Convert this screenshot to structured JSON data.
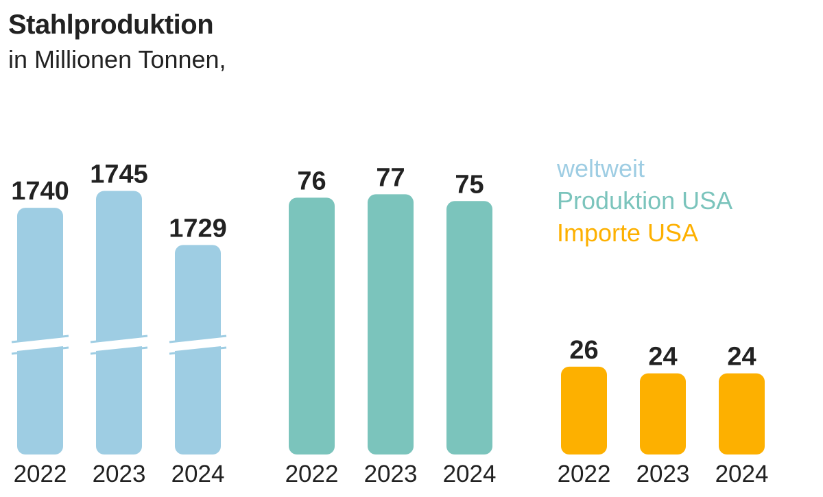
{
  "chart_data": {
    "type": "bar",
    "title": "Stahlproduktion",
    "subtitle": "in Millionen Tonnen,",
    "categories": [
      "2022",
      "2023",
      "2024"
    ],
    "series": [
      {
        "name": "weltweit",
        "values": [
          1740,
          1745,
          1729
        ],
        "color": "#9ecde3",
        "axis_break": true
      },
      {
        "name": "Produktion USA",
        "values": [
          76,
          77,
          75
        ],
        "color": "#7bc4bc"
      },
      {
        "name": "Importe USA",
        "values": [
          26,
          24,
          24
        ],
        "color": "#fdb000"
      }
    ],
    "legend_placement": "top-right",
    "grid": false,
    "axes_visible": false,
    "data_labels": true
  }
}
